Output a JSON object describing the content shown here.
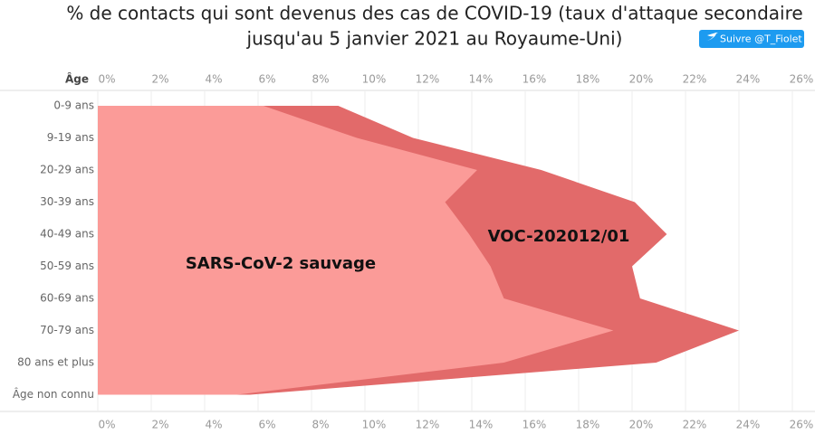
{
  "follow_button": "Suivre @T_Fiolet",
  "chart_data": {
    "type": "area",
    "title": [
      "% de contacts qui sont devenus des cas de COVID-19 (taux d'attaque secondaire",
      "jusqu'au 5 janvier 2021 au Royaume-Uni)"
    ],
    "y_label": "Âge",
    "categories": [
      "0-9 ans",
      "9-19 ans",
      "20-29 ans",
      "30-39 ans",
      "40-49 ans",
      "50-59 ans",
      "60-69 ans",
      "70-79 ans",
      "80 ans et plus",
      "Âge non connu"
    ],
    "series": [
      {
        "name": "VOC-202012/01",
        "color": "#e26a6a",
        "values": [
          9.0,
          11.8,
          16.6,
          20.1,
          21.3,
          20.0,
          20.3,
          24.0,
          20.9,
          5.7
        ]
      },
      {
        "name": "SARS-CoV-2 sauvage",
        "color": "#fb9b98",
        "values": [
          6.2,
          9.7,
          14.2,
          13.0,
          13.9,
          14.7,
          15.2,
          19.3,
          15.2,
          5.2
        ]
      }
    ],
    "annotations": [
      "VOC-202012/01",
      "SARS-CoV-2 sauvage"
    ],
    "xlim": [
      0,
      26
    ],
    "xticks": [
      {
        "value": 0,
        "label": "0%"
      },
      {
        "value": 2,
        "label": "2%"
      },
      {
        "value": 4,
        "label": "4%"
      },
      {
        "value": 6,
        "label": "6%"
      },
      {
        "value": 8,
        "label": "8%"
      },
      {
        "value": 10,
        "label": "10%"
      },
      {
        "value": 12,
        "label": "12%"
      },
      {
        "value": 14,
        "label": "14%"
      },
      {
        "value": 16,
        "label": "16%"
      },
      {
        "value": 18,
        "label": "18%"
      },
      {
        "value": 20,
        "label": "20%"
      },
      {
        "value": 22,
        "label": "22%"
      },
      {
        "value": 24,
        "label": "24%"
      },
      {
        "value": 26,
        "label": "26%"
      }
    ],
    "grid": true
  }
}
